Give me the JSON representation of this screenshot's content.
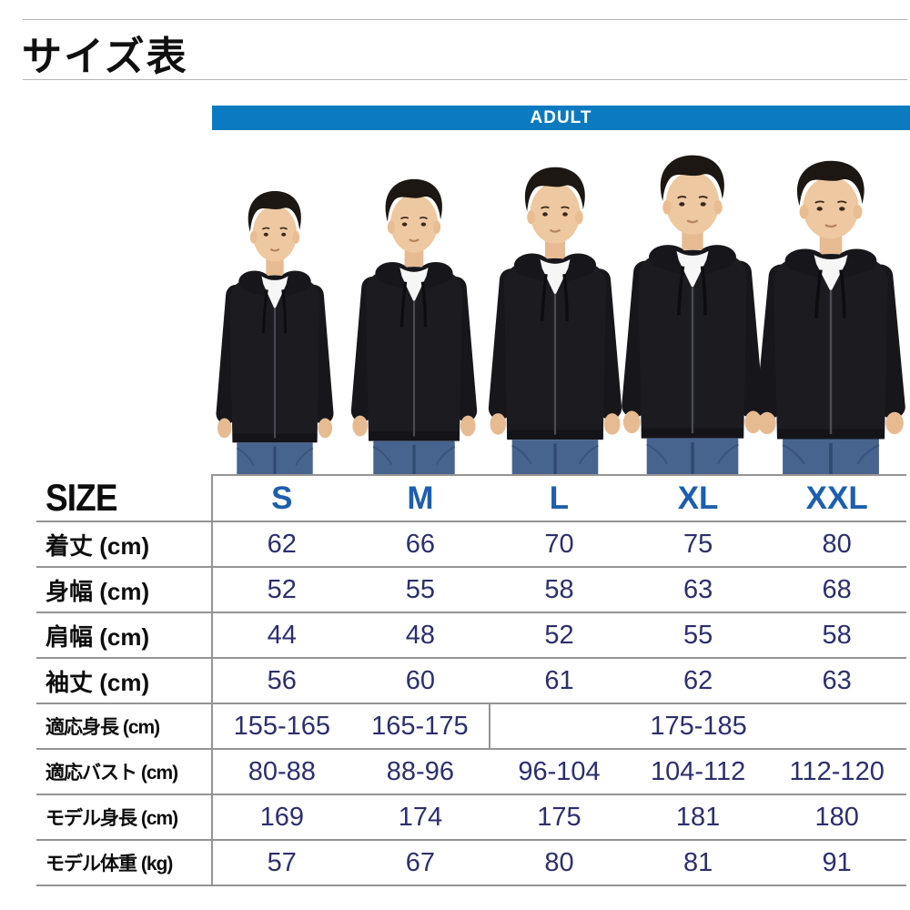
{
  "page_title": "サイズ表",
  "banner": {
    "label": "ADULT"
  },
  "size_chart": {
    "size_header": "SIZE",
    "columns": [
      "S",
      "M",
      "L",
      "XL",
      "XXL"
    ],
    "rows": [
      {
        "label": "着丈 (cm)",
        "values": [
          "62",
          "66",
          "70",
          "75",
          "80"
        ]
      },
      {
        "label": "身幅 (cm)",
        "values": [
          "52",
          "55",
          "58",
          "63",
          "68"
        ]
      },
      {
        "label": "肩幅 (cm)",
        "values": [
          "44",
          "48",
          "52",
          "55",
          "58"
        ]
      },
      {
        "label": "袖丈 (cm)",
        "values": [
          "56",
          "60",
          "61",
          "62",
          "63"
        ]
      },
      {
        "label": "適応身長 (cm)",
        "values": [
          "155-165",
          "165-175",
          {
            "text": "175-185",
            "colspan": 3
          }
        ]
      },
      {
        "label": "適応バスト (cm)",
        "values": [
          "80-88",
          "88-96",
          "96-104",
          "104-112",
          "112-120"
        ]
      },
      {
        "label": "モデル身長 (cm)",
        "values": [
          "169",
          "174",
          "175",
          "181",
          "180"
        ]
      },
      {
        "label": "モデル体重 (kg)",
        "values": [
          "57",
          "67",
          "80",
          "81",
          "91"
        ]
      }
    ]
  },
  "colors": {
    "banner_blue": "#0c7ac0",
    "size_letter_blue": "#1d5fad",
    "value_navy": "#2c2f6d"
  }
}
